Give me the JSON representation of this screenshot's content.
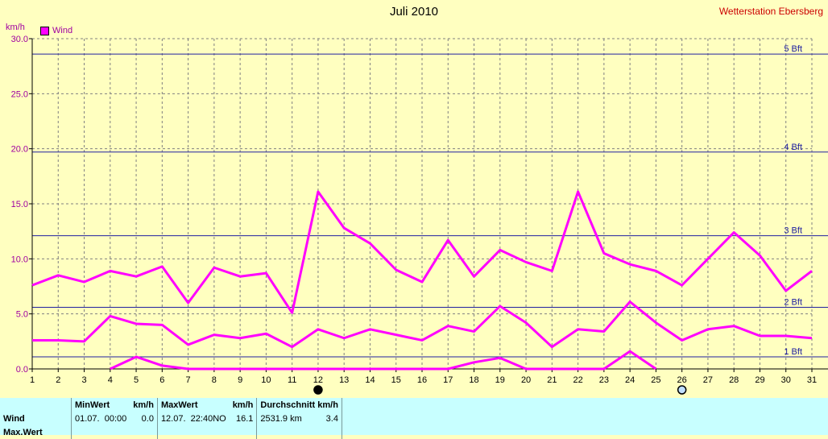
{
  "header": {
    "title": "Juli 2010",
    "station": "Wetterstation Ebersberg",
    "unit": "km/h",
    "legend": "Wind"
  },
  "colors": {
    "background": "#ffffc0",
    "series": "#ff00ff",
    "beaufort_line": "#2020a0",
    "grid": "#808080",
    "stats_background": "#c8ffff"
  },
  "chart_data": {
    "type": "line",
    "title": "Juli 2010",
    "ylabel": "km/h",
    "xlim": [
      1,
      31
    ],
    "ylim": [
      0,
      30
    ],
    "x_ticks": [
      "1",
      "2",
      "3",
      "4",
      "5",
      "6",
      "7",
      "8",
      "9",
      "10",
      "11",
      "12",
      "13",
      "14",
      "15",
      "16",
      "17",
      "18",
      "19",
      "20",
      "21",
      "22",
      "23",
      "24",
      "25",
      "26",
      "27",
      "28",
      "29",
      "30",
      "31"
    ],
    "y_ticks": [
      "0.0",
      "5.0",
      "10.0",
      "15.0",
      "20.0",
      "25.0",
      "30.0"
    ],
    "grid": true,
    "legend": [
      "Wind"
    ],
    "beaufort_lines": [
      {
        "label": "1 Bft",
        "value": 1.1
      },
      {
        "label": "2 Bft",
        "value": 5.6
      },
      {
        "label": "3 Bft",
        "value": 12.1
      },
      {
        "label": "4 Bft",
        "value": 19.7
      },
      {
        "label": "5 Bft",
        "value": 28.6
      }
    ],
    "series": [
      {
        "name": "Wind",
        "role": "max",
        "x": [
          1,
          2,
          3,
          4,
          5,
          6,
          7,
          8,
          9,
          10,
          11,
          12,
          13,
          14,
          15,
          16,
          17,
          18,
          19,
          20,
          21,
          22,
          23,
          24,
          25,
          26,
          27,
          28,
          29,
          30,
          31
        ],
        "values": [
          7.6,
          8.5,
          7.9,
          8.9,
          8.4,
          9.3,
          6.0,
          9.2,
          8.4,
          8.7,
          5.1,
          16.1,
          12.8,
          11.4,
          9.0,
          7.9,
          11.7,
          8.4,
          10.8,
          9.7,
          8.9,
          16.1,
          10.5,
          9.5,
          8.9,
          7.6,
          10.0,
          12.4,
          10.3,
          7.1,
          8.9
        ]
      },
      {
        "name": "Wind",
        "role": "average",
        "x": [
          1,
          2,
          3,
          4,
          5,
          6,
          7,
          8,
          9,
          10,
          11,
          12,
          13,
          14,
          15,
          16,
          17,
          18,
          19,
          20,
          21,
          22,
          23,
          24,
          25,
          26,
          27,
          28,
          29,
          30,
          31
        ],
        "values": [
          2.6,
          2.6,
          2.5,
          4.8,
          4.1,
          4.0,
          2.2,
          3.1,
          2.8,
          3.2,
          2.0,
          3.6,
          2.8,
          3.6,
          3.1,
          2.6,
          3.9,
          3.4,
          5.7,
          4.2,
          2.0,
          3.6,
          3.4,
          6.1,
          4.2,
          2.6,
          3.6,
          3.9,
          3.0,
          3.0,
          2.8
        ]
      },
      {
        "name": "Wind",
        "role": "min",
        "x": [
          4,
          5,
          6,
          7,
          17,
          18,
          19,
          20,
          23,
          24,
          25
        ],
        "values": [
          0.0,
          1.1,
          0.3,
          0.0,
          0.0,
          0.6,
          1.0,
          0.0,
          0.0,
          1.6,
          0.0
        ]
      }
    ],
    "markers": [
      {
        "x": 12,
        "symbol": "new-moon"
      },
      {
        "x": 26,
        "symbol": "full-moon"
      }
    ]
  },
  "stats": {
    "headers": {
      "min": "MinWert",
      "min_unit": "km/h",
      "max": "MaxWert",
      "max_unit": "km/h",
      "avg": "Durchschnitt km/h"
    },
    "rows": [
      {
        "label": "Wind",
        "min_date": "01.07.",
        "min_time": "00:00",
        "min_value": "0.0",
        "max_date": "12.07.",
        "max_time": "22:40",
        "max_dir": "NO",
        "max_value": "16.1",
        "distance": "2531.9 km",
        "avg_value": "3.4"
      },
      {
        "label": "Max.Wert"
      }
    ]
  }
}
